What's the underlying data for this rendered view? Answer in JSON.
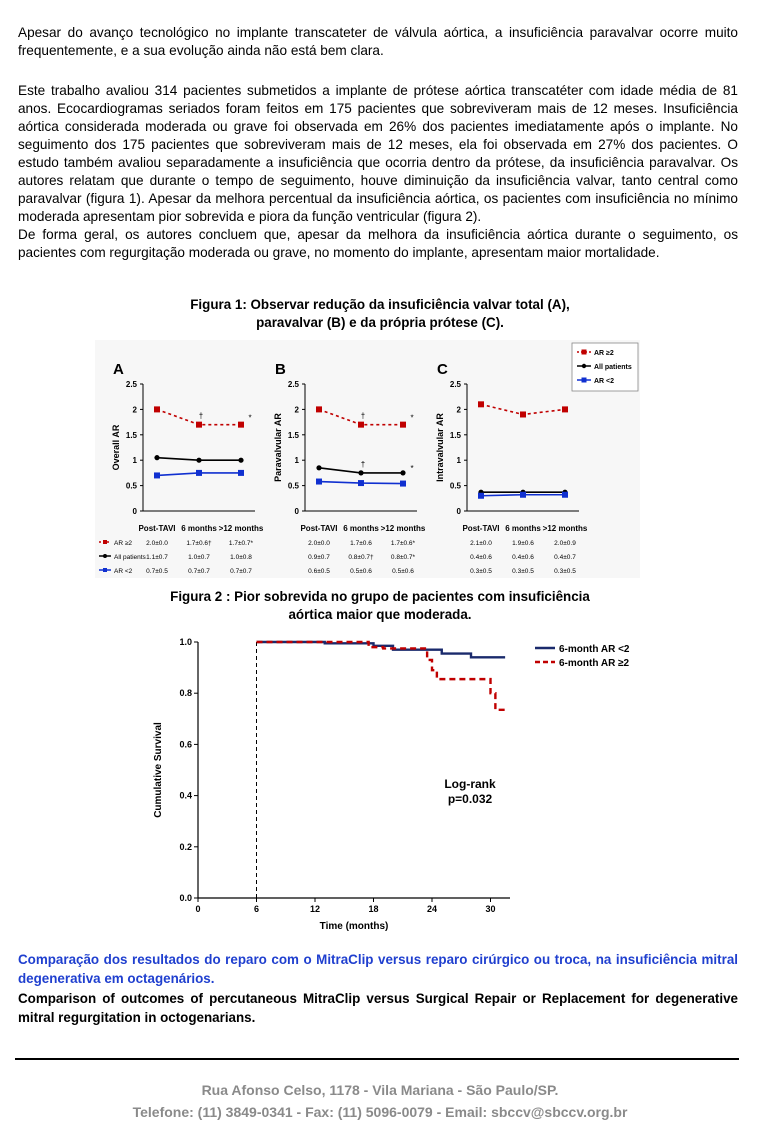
{
  "intro": "Apesar do avanço tecnológico no implante transcateter de válvula aórtica, a insuficiência paravalvar ocorre muito frequentemente,  e a sua evolução ainda não está bem clara.",
  "body": "Este trabalho avaliou 314 pacientes submetidos a implante de prótese aórtica transcatéter com idade média de 81 anos. Ecocardiogramas seriados foram feitos em 175 pacientes que sobreviveram mais de 12 meses. Insuficiência aórtica considerada moderada ou grave foi observada em 26% dos pacientes imediatamente após o implante. No seguimento dos 175 pacientes que sobreviveram mais de 12 meses, ela foi observada em 27% dos pacientes. O estudo também avaliou separadamente a insuficiência que ocorria dentro da prótese, da insuficiência paravalvar. Os autores relatam que durante o tempo de seguimento, houve diminuição da insuficiência valvar, tanto central como paravalvar (figura 1). Apesar da melhora percentual da insuficiência aórtica, os pacientes com insuficiência no mínimo moderada apresentam pior sobrevida e piora da função ventricular (figura 2).",
  "conclusion": "De forma geral, os autores concluem que, apesar da melhora da insuficiência aórtica durante o seguimento, os pacientes com regurgitação moderada ou grave, no momento do implante, apresentam maior mortalidade.",
  "figure1": {
    "caption_line1": "Figura 1: Observar redução da insuficiência valvar total (A),",
    "caption_line2": "paravalvar (B)  e da própria prótese (C)."
  },
  "figure2": {
    "caption_line1": "Figura 2 : Pior sobrevida no grupo de pacientes com insuficiência",
    "caption_line2": "aórtica maior que moderada."
  },
  "chart_data": [
    {
      "type": "line",
      "panel": "A",
      "ylabel": "Overall AR",
      "categories": [
        "Post-TAVI",
        "6 months",
        ">12 months"
      ],
      "ylim": [
        0,
        2.5
      ],
      "yticks": [
        "0",
        "0.5",
        "1",
        "1.5",
        "2",
        "2.5"
      ],
      "series": [
        {
          "name": "AR ≥2",
          "values": [
            2.0,
            1.7,
            1.7
          ],
          "color": "#c00000",
          "table": [
            "2.0±0.0",
            "1.7±0.6†",
            "1.7±0.7*"
          ]
        },
        {
          "name": "All patients",
          "values": [
            1.05,
            1.0,
            1.0
          ],
          "color": "#000000",
          "table": [
            "1.1±0.7",
            "1.0±0.7",
            "1.0±0.8"
          ]
        },
        {
          "name": "AR <2",
          "values": [
            0.7,
            0.75,
            0.75
          ],
          "color": "#1030d0",
          "table": [
            "0.7±0.5",
            "0.7±0.7",
            "0.7±0.7"
          ]
        }
      ],
      "markers": [
        "†",
        "*"
      ]
    },
    {
      "type": "line",
      "panel": "B",
      "ylabel": "Paravalvular AR",
      "categories": [
        "Post-TAVI",
        "6 months",
        ">12 months"
      ],
      "ylim": [
        0,
        2.5
      ],
      "yticks": [
        "0",
        "0.5",
        "1",
        "1.5",
        "2",
        "2.5"
      ],
      "series": [
        {
          "name": "AR ≥2",
          "values": [
            2.0,
            1.7,
            1.7
          ],
          "color": "#c00000",
          "table": [
            "2.0±0.0",
            "1.7±0.6",
            "1.7±0.6*"
          ]
        },
        {
          "name": "All patients",
          "values": [
            0.85,
            0.75,
            0.75
          ],
          "color": "#000000",
          "table": [
            "0.9±0.7",
            "0.8±0.7†",
            "0.8±0.7*"
          ]
        },
        {
          "name": "AR <2",
          "values": [
            0.58,
            0.55,
            0.54
          ],
          "color": "#1030d0",
          "table": [
            "0.6±0.5",
            "0.5±0.6",
            "0.5±0.6"
          ]
        }
      ],
      "markers": [
        "†",
        "*",
        "†",
        "*"
      ]
    },
    {
      "type": "line",
      "panel": "C",
      "ylabel": "Intravalvular AR",
      "categories": [
        "Post-TAVI",
        "6 months",
        ">12 months"
      ],
      "ylim": [
        0,
        2.5
      ],
      "yticks": [
        "0",
        "0.5",
        "1",
        "1.5",
        "2",
        "2.5"
      ],
      "series": [
        {
          "name": "AR ≥2",
          "values": [
            2.1,
            1.9,
            2.0
          ],
          "color": "#c00000",
          "table": [
            "2.1±0.0",
            "1.9±0.6",
            "2.0±0.9"
          ]
        },
        {
          "name": "All patients",
          "values": [
            0.37,
            0.37,
            0.37
          ],
          "color": "#000000",
          "table": [
            "0.4±0.6",
            "0.4±0.6",
            "0.4±0.7"
          ]
        },
        {
          "name": "AR <2",
          "values": [
            0.3,
            0.32,
            0.32
          ],
          "color": "#1030d0",
          "table": [
            "0.3±0.5",
            "0.3±0.5",
            "0.3±0.5"
          ]
        }
      ],
      "legend": [
        "AR ≥2",
        "All patients",
        "AR <2"
      ],
      "legend_position": "top-right"
    },
    {
      "type": "line",
      "xlabel": "Time (months)",
      "ylabel": "Cumulative Survival",
      "xlim": [
        0,
        32
      ],
      "ylim": [
        0,
        1.0
      ],
      "xticks": [
        "0",
        "6",
        "12",
        "18",
        "24",
        "30"
      ],
      "yticks": [
        "0.0",
        "0.2",
        "0.4",
        "0.6",
        "0.8",
        "1.0"
      ],
      "series": [
        {
          "name": "6-month AR <2",
          "color": "#1a2a6c",
          "style": "solid",
          "x": [
            6,
            12,
            13,
            17,
            18,
            20,
            24,
            25,
            27,
            28,
            31.5
          ],
          "y": [
            1.0,
            1.0,
            0.995,
            0.995,
            0.985,
            0.97,
            0.97,
            0.955,
            0.955,
            0.94,
            0.94
          ]
        },
        {
          "name": "6-month AR ≥2",
          "color": "#c00000",
          "style": "dashed",
          "x": [
            6,
            17,
            17.5,
            19,
            23,
            23.5,
            24,
            24.5,
            29,
            30,
            30.5,
            31.5
          ],
          "y": [
            1.0,
            1.0,
            0.98,
            0.975,
            0.975,
            0.93,
            0.89,
            0.855,
            0.855,
            0.8,
            0.735,
            0.735
          ]
        }
      ],
      "vline_x": 6,
      "annotation": "Log-rank\np=0.032",
      "legend_position": "top-right"
    }
  ],
  "next_article": {
    "title_pt": "Comparação dos resultados do reparo com o MitraClip versus reparo cirúrgico ou troca, na insuficiência mitral degenerativa em octagenários.",
    "title_en": "Comparison of outcomes of percutaneous MitraClip versus Surgical Repair or Replacement for degenerative mitral regurgitation in octogenarians.",
    "title_color": "#1f3fcf"
  },
  "footer": {
    "address": "Rua Afonso Celso, 1178 - Vila Mariana - São Paulo/SP.",
    "contact": "Telefone: (11) 3849-0341 - Fax: (11) 5096-0079 - Email: sbccv@sbccv.org.br"
  }
}
